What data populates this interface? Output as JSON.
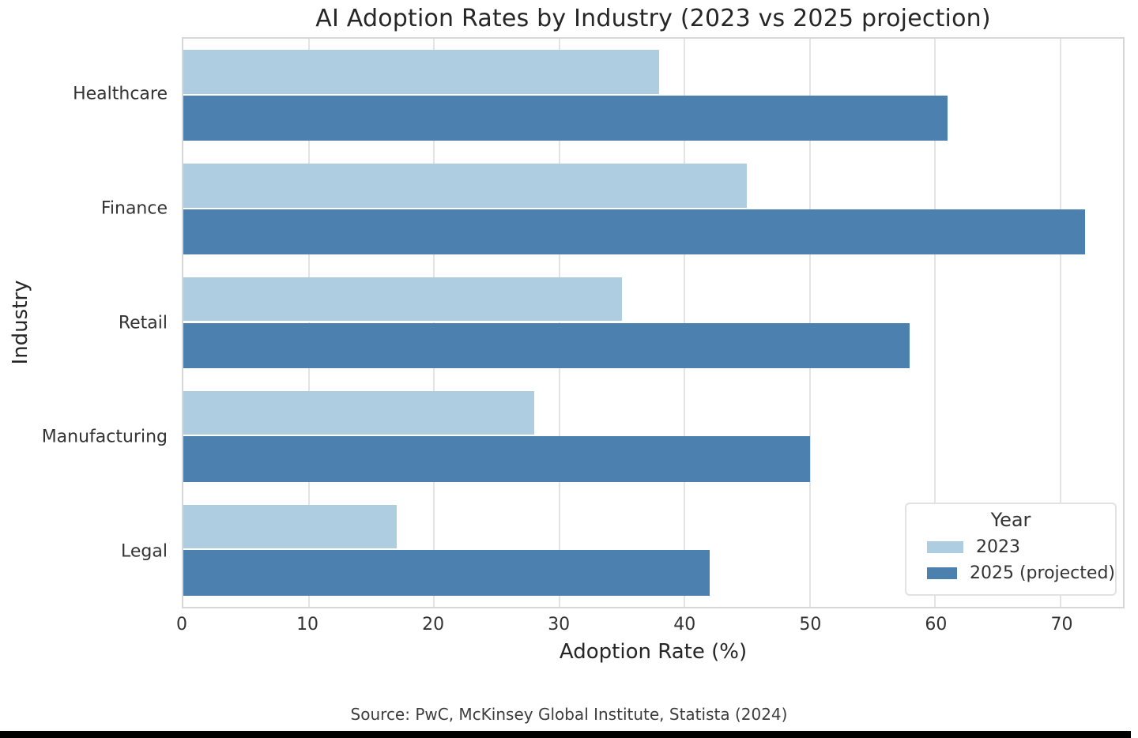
{
  "title": "AI Adoption Rates by Industry (2023 vs 2025 projection)",
  "source": "Source: PwC, McKinsey Global Institute, Statista (2024)",
  "colors": {
    "series_2023": "#aecde1",
    "series_2025": "#4c81af",
    "grid": "#e4e4e4",
    "bottom_bar": "#000000"
  },
  "chart_data": {
    "type": "bar",
    "orientation": "horizontal",
    "title": "AI Adoption Rates by Industry (2023 vs 2025 projection)",
    "categories": [
      "Healthcare",
      "Finance",
      "Retail",
      "Manufacturing",
      "Legal"
    ],
    "series": [
      {
        "name": "2023",
        "color": "#aecde1",
        "values": [
          38,
          45,
          35,
          28,
          17
        ]
      },
      {
        "name": "2025 (projected)",
        "color": "#4c81af",
        "values": [
          61,
          72,
          58,
          50,
          42
        ]
      }
    ],
    "xlabel": "Adoption Rate (%)",
    "ylabel": "Industry",
    "xlim": [
      0,
      75
    ],
    "xticks": [
      0,
      10,
      20,
      30,
      40,
      50,
      60,
      70
    ],
    "grid": true,
    "legend": {
      "title": "Year",
      "position": "lower right"
    }
  }
}
